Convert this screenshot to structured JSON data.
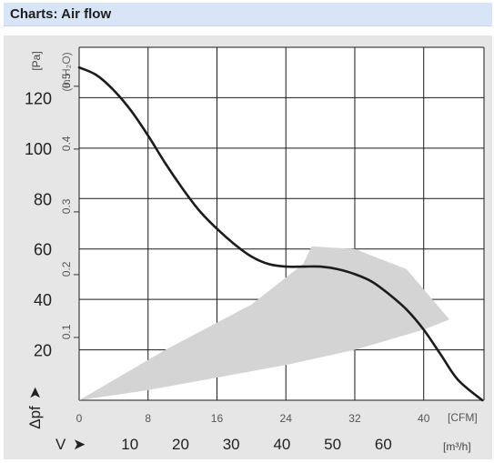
{
  "header": {
    "title": "Charts: Air flow"
  },
  "chart_data": {
    "type": "line",
    "title": "",
    "xlabel": "V",
    "ylabel": "Δpf",
    "x_units": {
      "primary": "[CFM]",
      "secondary": "[m³/h]"
    },
    "y_units": {
      "primary": "[Pa]",
      "secondary": "(in H₂O)"
    },
    "xlim_cfm": [
      0,
      47
    ],
    "ylim_pa": [
      0,
      140
    ],
    "x_ticks_cfm": [
      0,
      8,
      16,
      24,
      32,
      40
    ],
    "x_ticks_m3h": [
      10,
      20,
      30,
      40,
      50,
      60
    ],
    "y_ticks_pa": [
      20,
      40,
      60,
      80,
      100,
      120
    ],
    "y_ticks_inh2o": [
      0.1,
      0.2,
      0.3,
      0.4,
      0.5
    ],
    "grid": true,
    "series": [
      {
        "name": "",
        "x_cfm": [
          0,
          2,
          4,
          6,
          8,
          10,
          12,
          14,
          16,
          18,
          20,
          22,
          24,
          26,
          28,
          30,
          32,
          34,
          36,
          38,
          40,
          42,
          44,
          46.8
        ],
        "y_pa": [
          132,
          129,
          123,
          115,
          105,
          94,
          84,
          75,
          68,
          62,
          57,
          54,
          53,
          53,
          53,
          52,
          50,
          47,
          42,
          36,
          28,
          18,
          8,
          0
        ]
      }
    ],
    "operating_region": {
      "x_cfm": [
        0,
        10,
        20,
        26,
        27,
        32,
        38,
        43,
        40,
        32,
        24,
        16,
        8,
        0
      ],
      "y_pa": [
        0,
        20,
        38,
        54,
        61,
        60,
        52,
        32,
        28,
        20,
        14,
        9,
        4,
        0
      ]
    }
  }
}
